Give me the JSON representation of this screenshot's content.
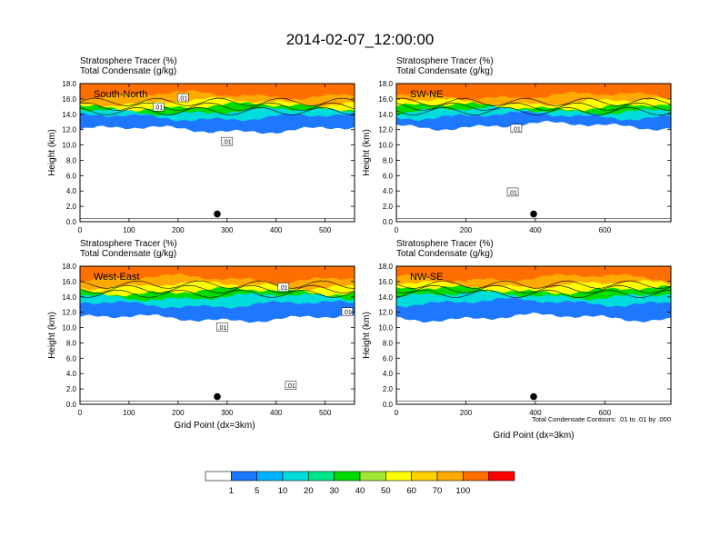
{
  "title": "2014-02-07_12:00:00",
  "tracer_label": "Stratosphere Tracer   (%)",
  "condensate_label": "Total Condensate   (g/kg)",
  "ylabel": "Height (km)",
  "xlabel": "Grid Point (dx=3km)",
  "contour_note": "Total Condensate Contours: .01 to .01 by .000",
  "contour_label": ".01",
  "colorbar": {
    "levels": [
      "1",
      "5",
      "10",
      "20",
      "30",
      "40",
      "50",
      "60",
      "70",
      "100"
    ],
    "colors": [
      "#ffffff",
      "#1e78ff",
      "#00b4ff",
      "#00dcdc",
      "#00e68c",
      "#00dc00",
      "#a0e632",
      "#ffff00",
      "#ffd200",
      "#ffaa00",
      "#ff6e00",
      "#ff0000"
    ]
  },
  "chart_data": [
    {
      "type": "heatmap",
      "panel": "South-North",
      "title": "South-North",
      "xlim": [
        0,
        560
      ],
      "ylim": [
        0,
        18
      ],
      "xticks": [
        "0",
        "100",
        "200",
        "300",
        "400",
        "500"
      ],
      "yticks": [
        "0.0",
        "2.0",
        "4.0",
        "6.0",
        "8.0",
        "10.0",
        "12.0",
        "14.0",
        "16.0",
        "18.0"
      ],
      "marker": {
        "x": 280,
        "y": 1.0
      },
      "contour_labels": [
        {
          "x": 160,
          "y": 14.9
        },
        {
          "x": 210,
          "y": 16.1
        },
        {
          "x": 300,
          "y": 10.4
        }
      ],
      "bands": [
        {
          "level": "1",
          "bottom": 12.0
        },
        {
          "level": "10",
          "bottom": 13.6
        },
        {
          "level": "30",
          "bottom": 14.4
        },
        {
          "level": "50",
          "bottom": 15.0
        },
        {
          "level": "70",
          "bottom": 15.6
        },
        {
          "level": "100",
          "bottom": 16.5
        }
      ]
    },
    {
      "type": "heatmap",
      "panel": "SW-NE",
      "title": "SW-NE",
      "xlim": [
        0,
        790
      ],
      "ylim": [
        0,
        18
      ],
      "xticks": [
        "0",
        "200",
        "400",
        "600"
      ],
      "yticks": [
        "0.0",
        "2.0",
        "4.0",
        "6.0",
        "8.0",
        "10.0",
        "12.0",
        "14.0",
        "16.0",
        "18.0"
      ],
      "marker": {
        "x": 395,
        "y": 1.0
      },
      "contour_labels": [
        {
          "x": 345,
          "y": 12.1
        },
        {
          "x": 335,
          "y": 3.8
        }
      ],
      "bands": [
        {
          "level": "1",
          "bottom": 12.5
        },
        {
          "level": "10",
          "bottom": 13.8
        },
        {
          "level": "30",
          "bottom": 14.5
        },
        {
          "level": "50",
          "bottom": 15.0
        },
        {
          "level": "70",
          "bottom": 15.6
        },
        {
          "level": "100",
          "bottom": 16.4
        }
      ]
    },
    {
      "type": "heatmap",
      "panel": "West-East",
      "title": "West-East",
      "xlim": [
        0,
        560
      ],
      "ylim": [
        0,
        18
      ],
      "xticks": [
        "0",
        "100",
        "200",
        "300",
        "400",
        "500"
      ],
      "yticks": [
        "0.0",
        "2.0",
        "4.0",
        "6.0",
        "8.0",
        "10.0",
        "12.0",
        "14.0",
        "16.0",
        "18.0"
      ],
      "marker": {
        "x": 280,
        "y": 1.0
      },
      "contour_labels": [
        {
          "x": 290,
          "y": 10.0
        },
        {
          "x": 415,
          "y": 15.2
        },
        {
          "x": 545,
          "y": 12.0
        },
        {
          "x": 430,
          "y": 2.4
        }
      ],
      "bands": [
        {
          "level": "1",
          "bottom": 11.2
        },
        {
          "level": "10",
          "bottom": 13.0
        },
        {
          "level": "30",
          "bottom": 14.0
        },
        {
          "level": "50",
          "bottom": 14.7
        },
        {
          "level": "70",
          "bottom": 15.5
        },
        {
          "level": "100",
          "bottom": 16.4
        }
      ]
    },
    {
      "type": "heatmap",
      "panel": "NW-SE",
      "title": "NW-SE",
      "xlim": [
        0,
        790
      ],
      "ylim": [
        0,
        18
      ],
      "xticks": [
        "0",
        "200",
        "400",
        "600"
      ],
      "yticks": [
        "0.0",
        "2.0",
        "4.0",
        "6.0",
        "8.0",
        "10.0",
        "12.0",
        "14.0",
        "16.0",
        "18.0"
      ],
      "marker": {
        "x": 395,
        "y": 1.0
      },
      "contour_labels": [],
      "bands": [
        {
          "level": "1",
          "bottom": 11.3
        },
        {
          "level": "10",
          "bottom": 13.3
        },
        {
          "level": "30",
          "bottom": 14.2
        },
        {
          "level": "50",
          "bottom": 14.9
        },
        {
          "level": "70",
          "bottom": 15.6
        },
        {
          "level": "100",
          "bottom": 16.5
        }
      ]
    }
  ]
}
